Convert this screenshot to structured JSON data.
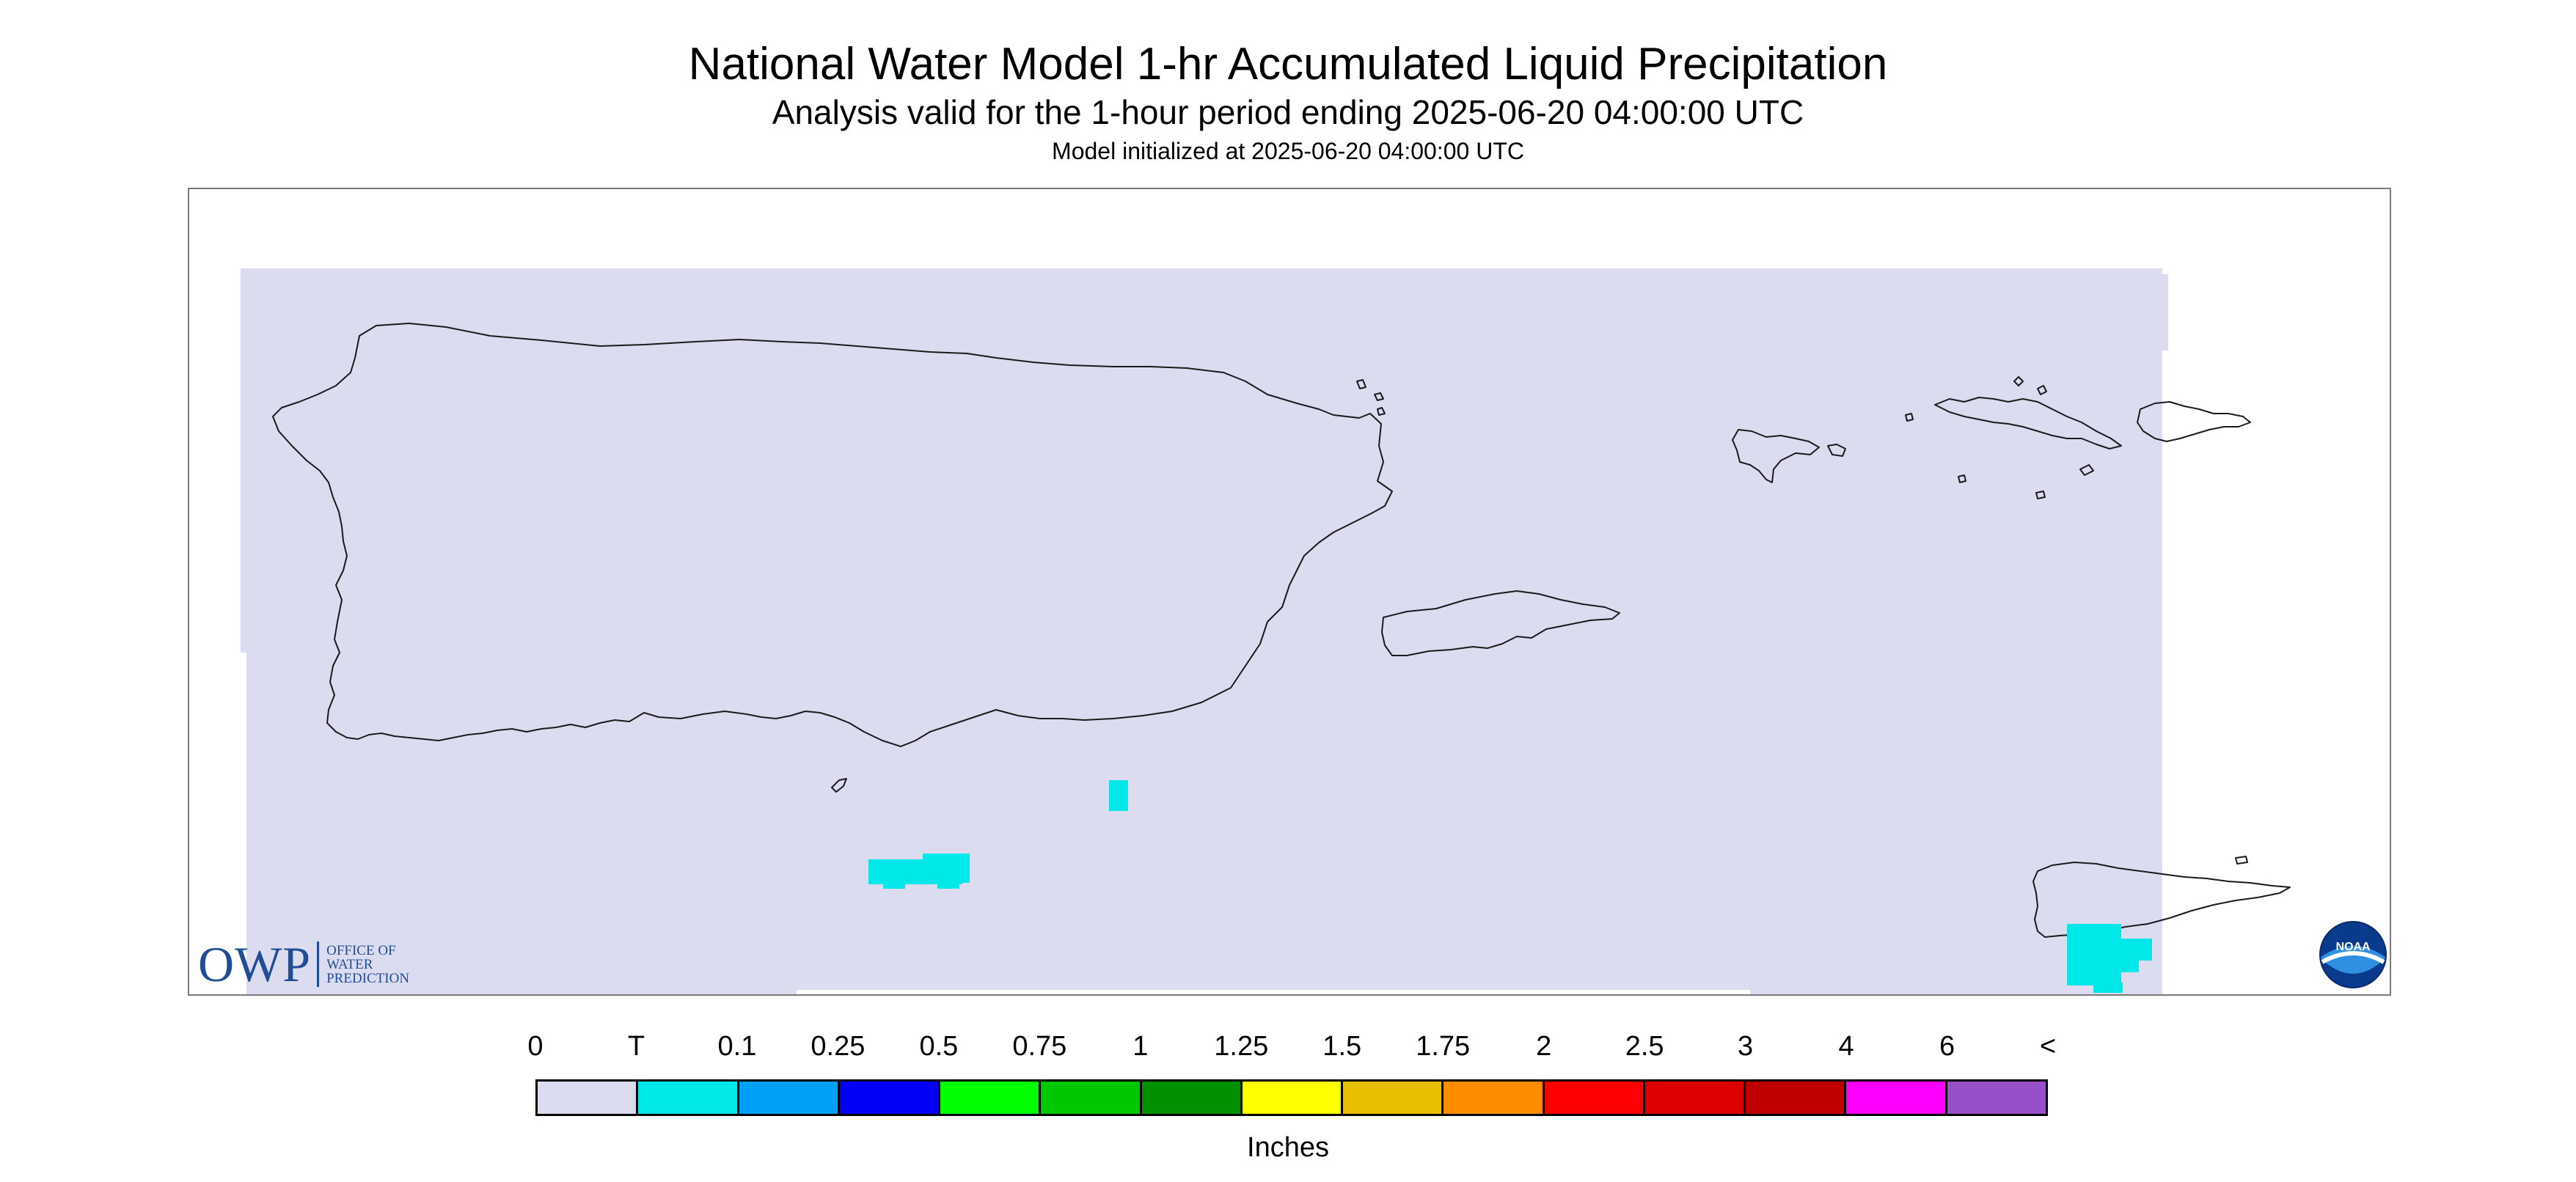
{
  "header": {
    "title": "National Water Model 1-hr Accumulated Liquid Precipitation",
    "subtitle": "Analysis valid for the 1-hour period ending 2025-06-20 04:00:00 UTC",
    "init_line": "Model initialized at 2025-06-20 04:00:00 UTC"
  },
  "map": {
    "background_color": "#dcdcf0",
    "coastline_color": "#1a1a1a"
  },
  "logos": {
    "owp_main": "OWP",
    "owp_sub_lines": [
      "OFFICE OF",
      "WATER",
      "PREDICTION"
    ],
    "noaa_text": "NOAA"
  },
  "legend": {
    "labels": [
      "0",
      "T",
      "0.1",
      "0.25",
      "0.5",
      "0.75",
      "1",
      "1.25",
      "1.5",
      "1.75",
      "2",
      "2.5",
      "3",
      "4",
      "6",
      "<"
    ],
    "colors": [
      "#dcdcf0",
      "#00e8e8",
      "#00a0f8",
      "#0000f8",
      "#00ff00",
      "#00c800",
      "#009000",
      "#ffff00",
      "#e8c000",
      "#ff8c00",
      "#ff0000",
      "#dc0000",
      "#c00000",
      "#ff00ff",
      "#9850c8"
    ],
    "units": "Inches"
  }
}
